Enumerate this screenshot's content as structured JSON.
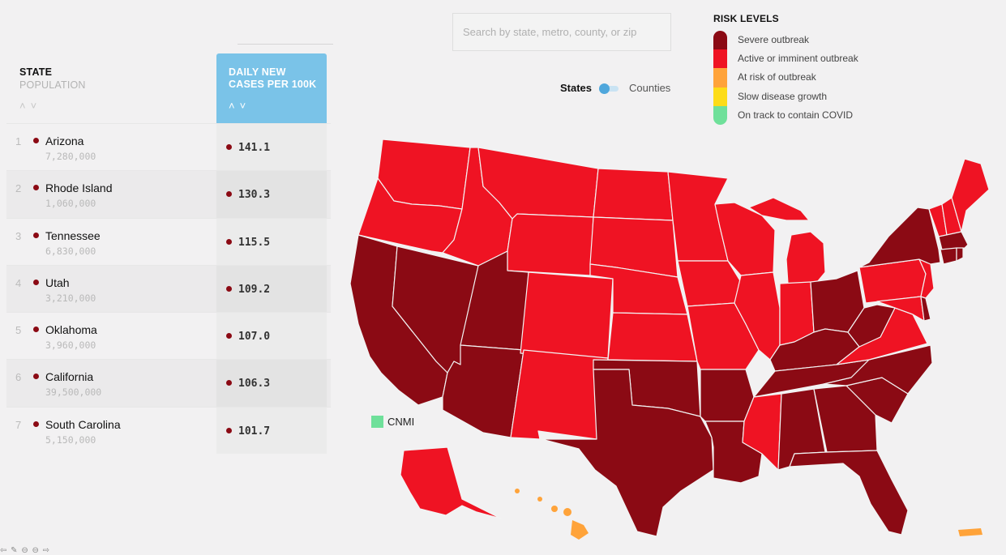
{
  "table": {
    "state_header": "STATE",
    "population_header": "POPULATION",
    "cases_header_line1": "DAILY NEW",
    "cases_header_line2": "CASES PER 100K",
    "sort_up": "^",
    "sort_down": "v",
    "rows": [
      {
        "rank": "1",
        "state": "Arizona",
        "population": "7,280,000",
        "cases": "141.1"
      },
      {
        "rank": "2",
        "state": "Rhode Island",
        "population": "1,060,000",
        "cases": "130.3"
      },
      {
        "rank": "3",
        "state": "Tennessee",
        "population": "6,830,000",
        "cases": "115.5"
      },
      {
        "rank": "4",
        "state": "Utah",
        "population": "3,210,000",
        "cases": "109.2"
      },
      {
        "rank": "5",
        "state": "Oklahoma",
        "population": "3,960,000",
        "cases": "107.0"
      },
      {
        "rank": "6",
        "state": "California",
        "population": "39,500,000",
        "cases": "106.3"
      },
      {
        "rank": "7",
        "state": "South Carolina",
        "population": "5,150,000",
        "cases": "101.7"
      }
    ]
  },
  "search": {
    "placeholder": "Search by state, metro, county, or zip"
  },
  "toggle": {
    "left": "States",
    "right": "Counties",
    "selected": "States"
  },
  "legend": {
    "title": "RISK LEVELS",
    "items": [
      {
        "label": "Severe outbreak",
        "color": "#8b0a14"
      },
      {
        "label": "Active or imminent outbreak",
        "color": "#ef1323"
      },
      {
        "label": "At risk of outbreak",
        "color": "#ffa33a"
      },
      {
        "label": "Slow disease growth",
        "color": "#fddc18"
      },
      {
        "label": "On track to contain COVID",
        "color": "#6fe09a"
      }
    ]
  },
  "map": {
    "cnmi_label": "CNMI",
    "cnmi_color": "#6fe09a",
    "colors": {
      "severe": "#8b0a14",
      "active": "#ef1323",
      "at_risk": "#ffa33a"
    },
    "states": [
      {
        "state": "Washington",
        "level": "active"
      },
      {
        "state": "Oregon",
        "level": "active"
      },
      {
        "state": "California",
        "level": "severe"
      },
      {
        "state": "Nevada",
        "level": "severe"
      },
      {
        "state": "Idaho",
        "level": "active"
      },
      {
        "state": "Montana",
        "level": "active"
      },
      {
        "state": "Wyoming",
        "level": "active"
      },
      {
        "state": "Utah",
        "level": "severe"
      },
      {
        "state": "Arizona",
        "level": "severe"
      },
      {
        "state": "Colorado",
        "level": "active"
      },
      {
        "state": "New Mexico",
        "level": "active"
      },
      {
        "state": "North Dakota",
        "level": "active"
      },
      {
        "state": "South Dakota",
        "level": "active"
      },
      {
        "state": "Nebraska",
        "level": "active"
      },
      {
        "state": "Kansas",
        "level": "active"
      },
      {
        "state": "Oklahoma",
        "level": "severe"
      },
      {
        "state": "Texas",
        "level": "severe"
      },
      {
        "state": "Minnesota",
        "level": "active"
      },
      {
        "state": "Iowa",
        "level": "active"
      },
      {
        "state": "Missouri",
        "level": "active"
      },
      {
        "state": "Arkansas",
        "level": "severe"
      },
      {
        "state": "Louisiana",
        "level": "severe"
      },
      {
        "state": "Wisconsin",
        "level": "active"
      },
      {
        "state": "Illinois",
        "level": "active"
      },
      {
        "state": "Michigan",
        "level": "active"
      },
      {
        "state": "Indiana",
        "level": "active"
      },
      {
        "state": "Ohio",
        "level": "severe"
      },
      {
        "state": "Kentucky",
        "level": "severe"
      },
      {
        "state": "Tennessee",
        "level": "severe"
      },
      {
        "state": "Mississippi",
        "level": "active"
      },
      {
        "state": "Alabama",
        "level": "severe"
      },
      {
        "state": "Georgia",
        "level": "severe"
      },
      {
        "state": "Florida",
        "level": "severe"
      },
      {
        "state": "South Carolina",
        "level": "severe"
      },
      {
        "state": "North Carolina",
        "level": "severe"
      },
      {
        "state": "Virginia",
        "level": "active"
      },
      {
        "state": "West Virginia",
        "level": "severe"
      },
      {
        "state": "Pennsylvania",
        "level": "active"
      },
      {
        "state": "New York",
        "level": "severe"
      },
      {
        "state": "New Jersey",
        "level": "active"
      },
      {
        "state": "Maryland",
        "level": "active"
      },
      {
        "state": "Delaware",
        "level": "severe"
      },
      {
        "state": "Connecticut",
        "level": "severe"
      },
      {
        "state": "Rhode Island",
        "level": "severe"
      },
      {
        "state": "Massachusetts",
        "level": "severe"
      },
      {
        "state": "Vermont",
        "level": "active"
      },
      {
        "state": "New Hampshire",
        "level": "active"
      },
      {
        "state": "Maine",
        "level": "active"
      },
      {
        "state": "Alaska",
        "level": "active"
      },
      {
        "state": "Hawaii",
        "level": "at_risk"
      },
      {
        "state": "Puerto Rico",
        "level": "at_risk"
      }
    ]
  },
  "bottom_icons": "⇦ ✎ ⊖ ⊖ ⇨"
}
